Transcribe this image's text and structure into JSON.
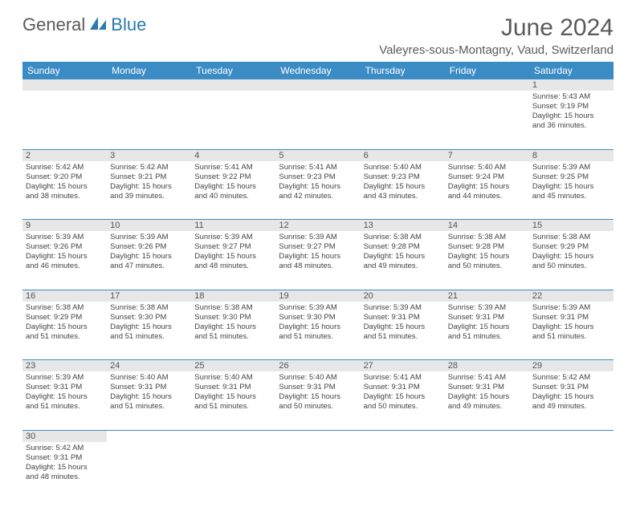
{
  "brand": {
    "general": "General",
    "blue": "Blue",
    "general_color": "#5a5a5a",
    "blue_color": "#2a7aaf",
    "icon_color": "#2a7aaf"
  },
  "title": "June 2024",
  "location": "Valeyres-sous-Montagny, Vaud, Switzerland",
  "colors": {
    "header_bg": "#3b8bc4",
    "header_text": "#ffffff",
    "daynum_bg": "#e7e7e7",
    "cell_border": "#3b8bc4",
    "text": "#444444"
  },
  "weekdays": [
    "Sunday",
    "Monday",
    "Tuesday",
    "Wednesday",
    "Thursday",
    "Friday",
    "Saturday"
  ],
  "weeks": [
    [
      null,
      null,
      null,
      null,
      null,
      null,
      {
        "d": "1",
        "sr": "Sunrise: 5:43 AM",
        "ss": "Sunset: 9:19 PM",
        "dl1": "Daylight: 15 hours",
        "dl2": "and 36 minutes."
      }
    ],
    [
      {
        "d": "2",
        "sr": "Sunrise: 5:42 AM",
        "ss": "Sunset: 9:20 PM",
        "dl1": "Daylight: 15 hours",
        "dl2": "and 38 minutes."
      },
      {
        "d": "3",
        "sr": "Sunrise: 5:42 AM",
        "ss": "Sunset: 9:21 PM",
        "dl1": "Daylight: 15 hours",
        "dl2": "and 39 minutes."
      },
      {
        "d": "4",
        "sr": "Sunrise: 5:41 AM",
        "ss": "Sunset: 9:22 PM",
        "dl1": "Daylight: 15 hours",
        "dl2": "and 40 minutes."
      },
      {
        "d": "5",
        "sr": "Sunrise: 5:41 AM",
        "ss": "Sunset: 9:23 PM",
        "dl1": "Daylight: 15 hours",
        "dl2": "and 42 minutes."
      },
      {
        "d": "6",
        "sr": "Sunrise: 5:40 AM",
        "ss": "Sunset: 9:23 PM",
        "dl1": "Daylight: 15 hours",
        "dl2": "and 43 minutes."
      },
      {
        "d": "7",
        "sr": "Sunrise: 5:40 AM",
        "ss": "Sunset: 9:24 PM",
        "dl1": "Daylight: 15 hours",
        "dl2": "and 44 minutes."
      },
      {
        "d": "8",
        "sr": "Sunrise: 5:39 AM",
        "ss": "Sunset: 9:25 PM",
        "dl1": "Daylight: 15 hours",
        "dl2": "and 45 minutes."
      }
    ],
    [
      {
        "d": "9",
        "sr": "Sunrise: 5:39 AM",
        "ss": "Sunset: 9:26 PM",
        "dl1": "Daylight: 15 hours",
        "dl2": "and 46 minutes."
      },
      {
        "d": "10",
        "sr": "Sunrise: 5:39 AM",
        "ss": "Sunset: 9:26 PM",
        "dl1": "Daylight: 15 hours",
        "dl2": "and 47 minutes."
      },
      {
        "d": "11",
        "sr": "Sunrise: 5:39 AM",
        "ss": "Sunset: 9:27 PM",
        "dl1": "Daylight: 15 hours",
        "dl2": "and 48 minutes."
      },
      {
        "d": "12",
        "sr": "Sunrise: 5:39 AM",
        "ss": "Sunset: 9:27 PM",
        "dl1": "Daylight: 15 hours",
        "dl2": "and 48 minutes."
      },
      {
        "d": "13",
        "sr": "Sunrise: 5:38 AM",
        "ss": "Sunset: 9:28 PM",
        "dl1": "Daylight: 15 hours",
        "dl2": "and 49 minutes."
      },
      {
        "d": "14",
        "sr": "Sunrise: 5:38 AM",
        "ss": "Sunset: 9:28 PM",
        "dl1": "Daylight: 15 hours",
        "dl2": "and 50 minutes."
      },
      {
        "d": "15",
        "sr": "Sunrise: 5:38 AM",
        "ss": "Sunset: 9:29 PM",
        "dl1": "Daylight: 15 hours",
        "dl2": "and 50 minutes."
      }
    ],
    [
      {
        "d": "16",
        "sr": "Sunrise: 5:38 AM",
        "ss": "Sunset: 9:29 PM",
        "dl1": "Daylight: 15 hours",
        "dl2": "and 51 minutes."
      },
      {
        "d": "17",
        "sr": "Sunrise: 5:38 AM",
        "ss": "Sunset: 9:30 PM",
        "dl1": "Daylight: 15 hours",
        "dl2": "and 51 minutes."
      },
      {
        "d": "18",
        "sr": "Sunrise: 5:38 AM",
        "ss": "Sunset: 9:30 PM",
        "dl1": "Daylight: 15 hours",
        "dl2": "and 51 minutes."
      },
      {
        "d": "19",
        "sr": "Sunrise: 5:39 AM",
        "ss": "Sunset: 9:30 PM",
        "dl1": "Daylight: 15 hours",
        "dl2": "and 51 minutes."
      },
      {
        "d": "20",
        "sr": "Sunrise: 5:39 AM",
        "ss": "Sunset: 9:31 PM",
        "dl1": "Daylight: 15 hours",
        "dl2": "and 51 minutes."
      },
      {
        "d": "21",
        "sr": "Sunrise: 5:39 AM",
        "ss": "Sunset: 9:31 PM",
        "dl1": "Daylight: 15 hours",
        "dl2": "and 51 minutes."
      },
      {
        "d": "22",
        "sr": "Sunrise: 5:39 AM",
        "ss": "Sunset: 9:31 PM",
        "dl1": "Daylight: 15 hours",
        "dl2": "and 51 minutes."
      }
    ],
    [
      {
        "d": "23",
        "sr": "Sunrise: 5:39 AM",
        "ss": "Sunset: 9:31 PM",
        "dl1": "Daylight: 15 hours",
        "dl2": "and 51 minutes."
      },
      {
        "d": "24",
        "sr": "Sunrise: 5:40 AM",
        "ss": "Sunset: 9:31 PM",
        "dl1": "Daylight: 15 hours",
        "dl2": "and 51 minutes."
      },
      {
        "d": "25",
        "sr": "Sunrise: 5:40 AM",
        "ss": "Sunset: 9:31 PM",
        "dl1": "Daylight: 15 hours",
        "dl2": "and 51 minutes."
      },
      {
        "d": "26",
        "sr": "Sunrise: 5:40 AM",
        "ss": "Sunset: 9:31 PM",
        "dl1": "Daylight: 15 hours",
        "dl2": "and 50 minutes."
      },
      {
        "d": "27",
        "sr": "Sunrise: 5:41 AM",
        "ss": "Sunset: 9:31 PM",
        "dl1": "Daylight: 15 hours",
        "dl2": "and 50 minutes."
      },
      {
        "d": "28",
        "sr": "Sunrise: 5:41 AM",
        "ss": "Sunset: 9:31 PM",
        "dl1": "Daylight: 15 hours",
        "dl2": "and 49 minutes."
      },
      {
        "d": "29",
        "sr": "Sunrise: 5:42 AM",
        "ss": "Sunset: 9:31 PM",
        "dl1": "Daylight: 15 hours",
        "dl2": "and 49 minutes."
      }
    ],
    [
      {
        "d": "30",
        "sr": "Sunrise: 5:42 AM",
        "ss": "Sunset: 9:31 PM",
        "dl1": "Daylight: 15 hours",
        "dl2": "and 48 minutes."
      },
      null,
      null,
      null,
      null,
      null,
      null
    ]
  ]
}
